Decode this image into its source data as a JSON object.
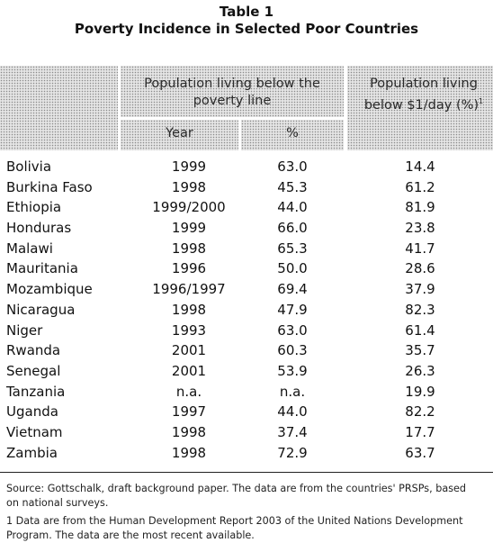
{
  "table": {
    "number": "Table 1",
    "title": "Poverty Incidence in Selected Poor Countries",
    "headers": {
      "group_line1": "Population living below the",
      "group_line2": "poverty line",
      "year": "Year",
      "pct": "%",
      "day_line1": "Population living",
      "day_line2": "below $1/day (%)",
      "day_marker": "1"
    },
    "rows": [
      {
        "country": "Bolivia",
        "year": "1999",
        "pct": "63.0",
        "day": "14.4"
      },
      {
        "country": "Burkina Faso",
        "year": "1998",
        "pct": "45.3",
        "day": "61.2"
      },
      {
        "country": "Ethiopia",
        "year": "1999/2000",
        "pct": "44.0",
        "day": "81.9"
      },
      {
        "country": "Honduras",
        "year": "1999",
        "pct": "66.0",
        "day": "23.8"
      },
      {
        "country": "Malawi",
        "year": "1998",
        "pct": "65.3",
        "day": "41.7"
      },
      {
        "country": "Mauritania",
        "year": "1996",
        "pct": "50.0",
        "day": "28.6"
      },
      {
        "country": "Mozambique",
        "year": "1996/1997",
        "pct": "69.4",
        "day": "37.9"
      },
      {
        "country": "Nicaragua",
        "year": "1998",
        "pct": "47.9",
        "day": "82.3"
      },
      {
        "country": "Niger",
        "year": "1993",
        "pct": "63.0",
        "day": "61.4"
      },
      {
        "country": "Rwanda",
        "year": "2001",
        "pct": "60.3",
        "day": "35.7"
      },
      {
        "country": "Senegal",
        "year": "2001",
        "pct": "53.9",
        "day": "26.3"
      },
      {
        "country": "Tanzania",
        "year": "n.a.",
        "pct": "n.a.",
        "day": "19.9"
      },
      {
        "country": "Uganda",
        "year": "1997",
        "pct": "44.0",
        "day": "82.2"
      },
      {
        "country": "Vietnam",
        "year": "1998",
        "pct": "37.4",
        "day": "17.7"
      },
      {
        "country": "Zambia",
        "year": "1998",
        "pct": "72.9",
        "day": "63.7"
      }
    ],
    "notes": {
      "source_line1": "Source: Gottschalk, draft background paper. The data are from the countries' PRSPs, based",
      "source_line2": "on national surveys.",
      "note1_line1": "1 Data are from the Human Development Report 2003 of the United Nations Development",
      "note1_line2": "Program. The data are the most recent available."
    }
  }
}
